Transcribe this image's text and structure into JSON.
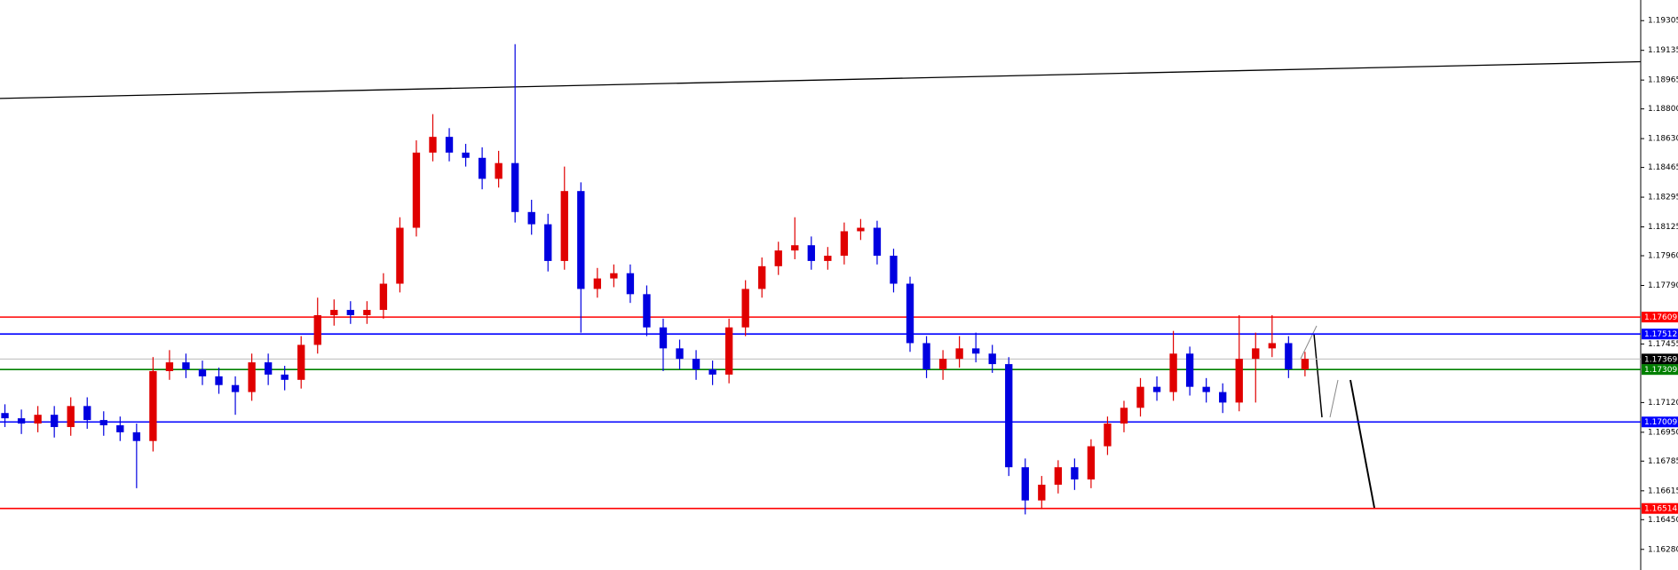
{
  "chart_data": {
    "type": "candlestick",
    "up_color": "#e00000",
    "down_color": "#0000e0",
    "open": [
      1.1706,
      1.1703,
      1.17,
      1.1705,
      1.1698,
      1.171,
      1.1702,
      1.1699,
      1.1695,
      1.169,
      1.173,
      1.1735,
      1.1731,
      1.1727,
      1.1722,
      1.1718,
      1.1735,
      1.1728,
      1.1725,
      1.1745,
      1.1762,
      1.1765,
      1.1762,
      1.1765,
      1.178,
      1.1812,
      1.1855,
      1.1864,
      1.1855,
      1.1852,
      1.184,
      1.1849,
      1.1821,
      1.1814,
      1.1793,
      1.1833,
      1.1777,
      1.1783,
      1.1786,
      1.1774,
      1.1755,
      1.1743,
      1.1737,
      1.1731,
      1.1728,
      1.1755,
      1.1777,
      1.179,
      1.1799,
      1.1802,
      1.1793,
      1.1796,
      1.181,
      1.1812,
      1.1796,
      1.178,
      1.1746,
      1.1731,
      1.1737,
      1.1743,
      1.174,
      1.1734,
      1.1675,
      1.1656,
      1.1665,
      1.1675,
      1.1668,
      1.1687,
      1.17,
      1.1709,
      1.1721,
      1.1718,
      1.174,
      1.1721,
      1.1718,
      1.1712,
      1.1737,
      1.1743,
      1.1746,
      1.1731
    ],
    "high": [
      1.1711,
      1.1708,
      1.171,
      1.171,
      1.1715,
      1.1715,
      1.1707,
      1.1704,
      1.17,
      1.1738,
      1.1742,
      1.174,
      1.1736,
      1.1732,
      1.1727,
      1.174,
      1.174,
      1.1733,
      1.175,
      1.1772,
      1.1771,
      1.177,
      1.177,
      1.1786,
      1.1818,
      1.1862,
      1.1877,
      1.1869,
      1.186,
      1.1858,
      1.1856,
      1.1917,
      1.1828,
      1.182,
      1.1847,
      1.1838,
      1.1789,
      1.1791,
      1.1791,
      1.1779,
      1.176,
      1.1748,
      1.1742,
      1.1736,
      1.176,
      1.1782,
      1.1795,
      1.1804,
      1.1818,
      1.1807,
      1.1801,
      1.1815,
      1.1817,
      1.1816,
      1.18,
      1.1784,
      1.175,
      1.1742,
      1.175,
      1.1752,
      1.1745,
      1.1738,
      1.168,
      1.167,
      1.1679,
      1.168,
      1.1691,
      1.1704,
      1.1713,
      1.1726,
      1.1727,
      1.1753,
      1.1744,
      1.1726,
      1.1723,
      1.1762,
      1.1752,
      1.1762,
      1.175,
      1.1741
    ],
    "low": [
      1.1698,
      1.1694,
      1.1695,
      1.1692,
      1.1693,
      1.1697,
      1.1693,
      1.169,
      1.1663,
      1.1684,
      1.1725,
      1.1726,
      1.1722,
      1.1717,
      1.1705,
      1.1713,
      1.1722,
      1.1719,
      1.172,
      1.174,
      1.1756,
      1.1757,
      1.1757,
      1.176,
      1.1775,
      1.1807,
      1.185,
      1.185,
      1.1847,
      1.1834,
      1.1835,
      1.1815,
      1.1808,
      1.1787,
      1.1788,
      1.1752,
      1.1772,
      1.1778,
      1.1769,
      1.175,
      1.173,
      1.1731,
      1.1725,
      1.1722,
      1.1723,
      1.175,
      1.1772,
      1.1785,
      1.1794,
      1.1788,
      1.1788,
      1.1791,
      1.1805,
      1.1791,
      1.1775,
      1.1741,
      1.1726,
      1.1725,
      1.1732,
      1.1735,
      1.1729,
      1.167,
      1.1648,
      1.1651,
      1.166,
      1.1662,
      1.1663,
      1.1682,
      1.1695,
      1.1704,
      1.1713,
      1.1713,
      1.1716,
      1.1712,
      1.1706,
      1.1707,
      1.1712,
      1.1738,
      1.1726,
      1.1727
    ],
    "close": [
      1.1703,
      1.17,
      1.1705,
      1.1698,
      1.171,
      1.1702,
      1.1699,
      1.1695,
      1.169,
      1.173,
      1.1735,
      1.1731,
      1.1727,
      1.1722,
      1.1718,
      1.1735,
      1.1728,
      1.1725,
      1.1745,
      1.1762,
      1.1765,
      1.1762,
      1.1765,
      1.178,
      1.1812,
      1.1855,
      1.1864,
      1.1855,
      1.1852,
      1.184,
      1.1849,
      1.1821,
      1.1814,
      1.1793,
      1.1833,
      1.1777,
      1.1783,
      1.1786,
      1.1774,
      1.1755,
      1.1743,
      1.1737,
      1.1731,
      1.1728,
      1.1755,
      1.1777,
      1.179,
      1.1799,
      1.1802,
      1.1793,
      1.1796,
      1.181,
      1.1812,
      1.1796,
      1.178,
      1.1746,
      1.1731,
      1.1737,
      1.1743,
      1.174,
      1.1734,
      1.1675,
      1.1656,
      1.1665,
      1.1675,
      1.1668,
      1.1687,
      1.17,
      1.1709,
      1.1721,
      1.1718,
      1.174,
      1.1721,
      1.1718,
      1.1712,
      1.1737,
      1.1743,
      1.1746,
      1.1731,
      1.1737
    ],
    "xlim": [
      -0.3,
      99.4
    ],
    "ylim": [
      1.16162,
      1.19423
    ],
    "yticks": [
      1.19305,
      1.19135,
      1.18965,
      {
        "value": 1.188,
        "label": "1.18800"
      },
      {
        "value": 1.1863,
        "label": "1.18630"
      },
      1.18465,
      1.18295,
      1.18125,
      {
        "value": 1.1796,
        "label": "1.17960"
      },
      {
        "value": 1.1779,
        "label": "1.17790"
      },
      1.17455,
      {
        "value": 1.1712,
        "label": "1.17120"
      },
      {
        "value": 1.1695,
        "label": "1.16950"
      },
      1.16785,
      1.16615,
      {
        "value": 1.1645,
        "label": "1.16450"
      },
      {
        "value": 1.1628,
        "label": "1.16280"
      }
    ],
    "levels": [
      {
        "price": 1.17609,
        "color": "#ff0000"
      },
      {
        "price": 1.17512,
        "color": "#0000ff"
      },
      {
        "price": 1.17369,
        "color": "#000000"
      },
      {
        "price": 1.17309,
        "color": "#008000"
      },
      {
        "price": 1.17009,
        "color": "#0000ff"
      },
      {
        "price": 1.16514,
        "color": "#ff0000"
      }
    ],
    "trendline": {
      "x": [
        -0.3,
        99.4
      ],
      "y": [
        1.1886,
        1.1907
      ],
      "color": "#000000"
    }
  }
}
